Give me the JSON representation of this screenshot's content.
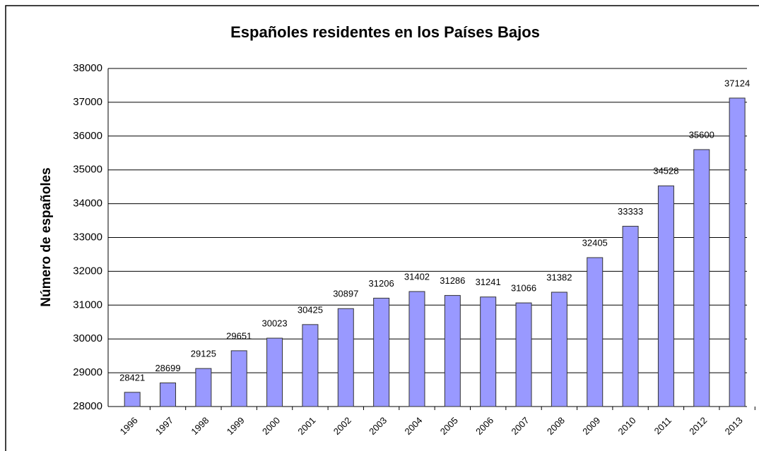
{
  "chart_data": {
    "type": "bar",
    "title": "Españoles residentes en los Países Bajos",
    "y_label": "Número de españoles",
    "categories": [
      "1996",
      "1997",
      "1998",
      "1999",
      "2000",
      "2001",
      "2002",
      "2003",
      "2004",
      "2005",
      "2006",
      "2007",
      "2008",
      "2009",
      "2010",
      "2011",
      "2012",
      "2013"
    ],
    "values": [
      28421,
      28699,
      29125,
      29651,
      30023,
      30425,
      30897,
      31206,
      31402,
      31286,
      31241,
      31066,
      31382,
      32405,
      33333,
      34528,
      35600,
      37124
    ],
    "color": "#9999ff",
    "ylim": [
      28000,
      38000
    ],
    "yticks": [
      28000,
      29000,
      30000,
      31000,
      32000,
      33000,
      34000,
      35000,
      36000,
      37000,
      38000
    ],
    "grid": true
  }
}
